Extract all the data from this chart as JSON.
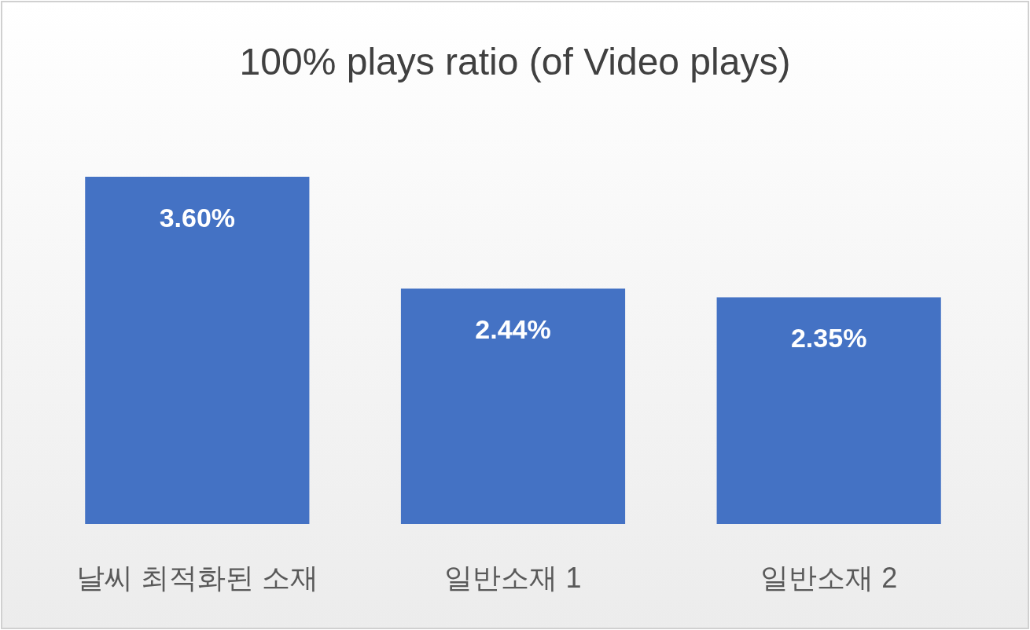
{
  "chart_data": {
    "type": "bar",
    "title": "100% plays ratio (of Video plays)",
    "categories": [
      "날씨 최적화된 소재",
      "일반소재 1",
      "일반소재 2"
    ],
    "values": [
      3.6,
      2.44,
      2.35
    ],
    "value_labels": [
      "3.60%",
      "2.44%",
      "2.35%"
    ],
    "color": "#4472c4"
  }
}
